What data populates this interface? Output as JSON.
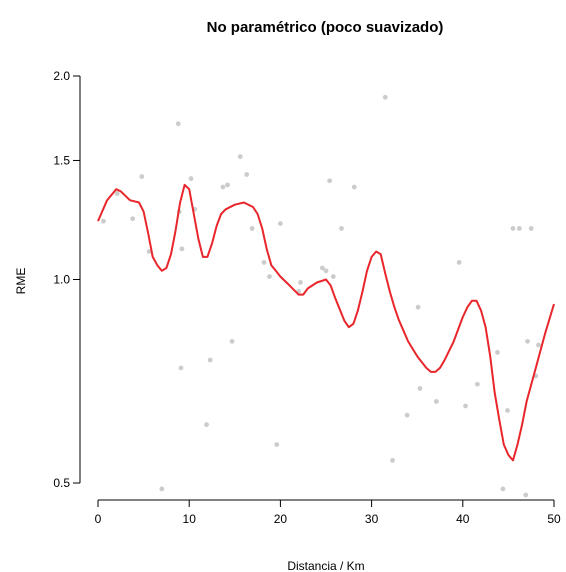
{
  "chart_data": {
    "type": "scatter",
    "title": "No paramétrico (poco suavizado)",
    "xlabel": "Distancia / Km",
    "ylabel": "RME",
    "xlim": [
      0,
      50
    ],
    "ylim": [
      0.5,
      2.0
    ],
    "y_scale": "log",
    "x_ticks": [
      0,
      10,
      20,
      30,
      40,
      50
    ],
    "x_tick_labels": [
      "0",
      "10",
      "20",
      "30",
      "40",
      "50"
    ],
    "y_ticks": [
      0.5,
      1.0,
      1.5,
      2.0
    ],
    "y_tick_labels": [
      "0.5",
      "1.0",
      "1.5",
      "2.0"
    ],
    "grid": false,
    "legend": "none",
    "colors": {
      "points": "#cccccc",
      "curve": "#e8262b",
      "axis": "#000000"
    },
    "points": [
      {
        "x": 0.6,
        "y": 1.22
      },
      {
        "x": 2.1,
        "y": 1.34
      },
      {
        "x": 3.8,
        "y": 1.23
      },
      {
        "x": 4.8,
        "y": 1.42
      },
      {
        "x": 5.6,
        "y": 1.1
      },
      {
        "x": 7.0,
        "y": 0.49
      },
      {
        "x": 8.8,
        "y": 1.7
      },
      {
        "x": 8.9,
        "y": 1.26
      },
      {
        "x": 9.1,
        "y": 0.74
      },
      {
        "x": 9.2,
        "y": 1.11
      },
      {
        "x": 10.2,
        "y": 1.41
      },
      {
        "x": 10.6,
        "y": 1.27
      },
      {
        "x": 11.9,
        "y": 0.61
      },
      {
        "x": 12.3,
        "y": 0.76
      },
      {
        "x": 13.7,
        "y": 1.37
      },
      {
        "x": 14.2,
        "y": 1.38
      },
      {
        "x": 14.7,
        "y": 0.81
      },
      {
        "x": 15.6,
        "y": 1.52
      },
      {
        "x": 16.3,
        "y": 1.43
      },
      {
        "x": 16.9,
        "y": 1.19
      },
      {
        "x": 18.2,
        "y": 1.06
      },
      {
        "x": 18.8,
        "y": 1.01
      },
      {
        "x": 19.6,
        "y": 0.57
      },
      {
        "x": 20.0,
        "y": 1.21
      },
      {
        "x": 22.0,
        "y": 0.96
      },
      {
        "x": 22.2,
        "y": 0.99
      },
      {
        "x": 24.6,
        "y": 1.04
      },
      {
        "x": 25.0,
        "y": 1.03
      },
      {
        "x": 25.4,
        "y": 1.4
      },
      {
        "x": 25.8,
        "y": 1.01
      },
      {
        "x": 26.7,
        "y": 1.19
      },
      {
        "x": 28.1,
        "y": 1.37
      },
      {
        "x": 31.5,
        "y": 1.86
      },
      {
        "x": 32.3,
        "y": 0.54
      },
      {
        "x": 33.9,
        "y": 0.63
      },
      {
        "x": 35.1,
        "y": 0.91
      },
      {
        "x": 35.3,
        "y": 0.69
      },
      {
        "x": 37.1,
        "y": 0.66
      },
      {
        "x": 39.6,
        "y": 1.06
      },
      {
        "x": 40.3,
        "y": 0.65
      },
      {
        "x": 41.6,
        "y": 0.7
      },
      {
        "x": 43.8,
        "y": 0.78
      },
      {
        "x": 44.4,
        "y": 0.49
      },
      {
        "x": 44.9,
        "y": 0.64
      },
      {
        "x": 45.5,
        "y": 1.19
      },
      {
        "x": 46.2,
        "y": 1.19
      },
      {
        "x": 46.9,
        "y": 0.48
      },
      {
        "x": 47.1,
        "y": 0.81
      },
      {
        "x": 47.5,
        "y": 1.19
      },
      {
        "x": 48.0,
        "y": 0.72
      },
      {
        "x": 48.3,
        "y": 0.8
      }
    ],
    "curve": {
      "x": [
        0,
        1,
        2,
        2.5,
        3,
        3.5,
        4.5,
        5,
        5.5,
        6,
        6.5,
        7,
        7.5,
        8,
        8.5,
        9,
        9.5,
        10,
        10.5,
        11,
        11.5,
        12,
        12.5,
        13,
        13.5,
        14,
        15,
        16,
        17,
        17.5,
        18,
        18.5,
        19,
        19.5,
        20,
        21,
        22,
        22.5,
        23,
        24,
        25,
        25.5,
        26,
        27,
        27.5,
        28,
        28.5,
        29,
        29.5,
        30,
        30.5,
        31,
        31.5,
        32,
        32.5,
        33,
        33.5,
        34,
        35,
        36,
        36.5,
        37,
        37.5,
        38,
        39,
        40,
        40.5,
        41,
        41.5,
        42,
        42.5,
        43,
        43.5,
        44,
        44.5,
        45,
        45.5,
        46,
        46.5,
        47,
        48,
        49,
        50
      ],
      "y": [
        1.22,
        1.31,
        1.36,
        1.35,
        1.33,
        1.31,
        1.3,
        1.26,
        1.17,
        1.08,
        1.05,
        1.03,
        1.04,
        1.09,
        1.18,
        1.3,
        1.38,
        1.36,
        1.25,
        1.15,
        1.08,
        1.08,
        1.13,
        1.2,
        1.25,
        1.27,
        1.29,
        1.3,
        1.28,
        1.25,
        1.19,
        1.11,
        1.05,
        1.03,
        1.01,
        0.98,
        0.95,
        0.95,
        0.97,
        0.99,
        1.0,
        0.98,
        0.94,
        0.87,
        0.85,
        0.86,
        0.9,
        0.96,
        1.03,
        1.08,
        1.1,
        1.09,
        1.02,
        0.96,
        0.91,
        0.87,
        0.84,
        0.81,
        0.77,
        0.74,
        0.73,
        0.73,
        0.74,
        0.76,
        0.81,
        0.88,
        0.91,
        0.93,
        0.93,
        0.9,
        0.85,
        0.77,
        0.68,
        0.62,
        0.57,
        0.55,
        0.54,
        0.57,
        0.61,
        0.66,
        0.74,
        0.83,
        0.92
      ]
    }
  }
}
